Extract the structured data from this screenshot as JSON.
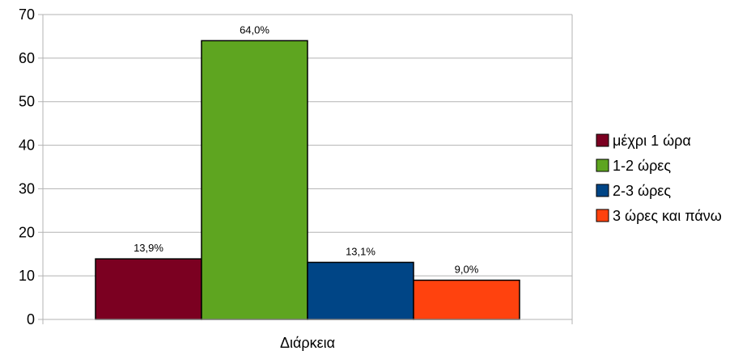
{
  "chart_data": {
    "type": "bar",
    "categories": [
      "Διάρκεια"
    ],
    "series": [
      {
        "name": "μέχρι 1 ώρα",
        "values": [
          13.9
        ],
        "label": "13,9%",
        "color": "#7b0021"
      },
      {
        "name": "1-2 ώρες",
        "values": [
          64.0
        ],
        "label": "64,0%",
        "color": "#5ea520"
      },
      {
        "name": "2-3 ώρες",
        "values": [
          13.1
        ],
        "label": "13,1%",
        "color": "#004586"
      },
      {
        "name": "3 ώρες και πάνω",
        "values": [
          9.0
        ],
        "label": "9,0%",
        "color": "#ff420e"
      }
    ],
    "title": "",
    "xlabel": "Διάρκεια",
    "ylabel": "",
    "ylim": [
      0,
      70
    ],
    "yticks": [
      "0",
      "10",
      "20",
      "30",
      "40",
      "50",
      "60",
      "70"
    ],
    "grid": true,
    "legend": "right"
  }
}
